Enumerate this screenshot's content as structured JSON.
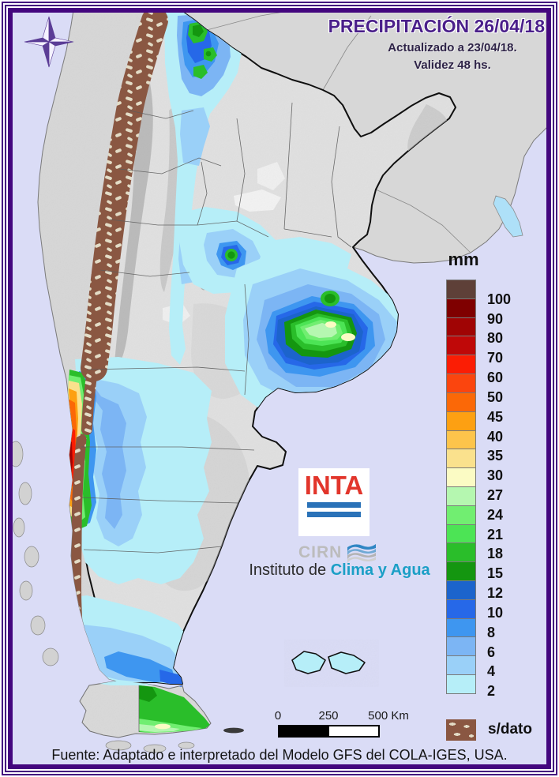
{
  "header": {
    "title": "PRECIPITACIÓN 26/04/18",
    "updated": "Actualizado a 23/04/18.",
    "validity": "Validez 48 hs."
  },
  "legend": {
    "unit": "mm",
    "values": [
      "100",
      "90",
      "80",
      "70",
      "60",
      "50",
      "45",
      "40",
      "35",
      "30",
      "27",
      "24",
      "21",
      "18",
      "15",
      "12",
      "10",
      "8",
      "6",
      "4",
      "2"
    ],
    "colors": [
      "#5e4038",
      "#7f0000",
      "#a00404",
      "#bf0808",
      "#fb1d04",
      "#fb450e",
      "#fb6807",
      "#fda012",
      "#fdc44b",
      "#fae18d",
      "#fbfbc4",
      "#b5f7b0",
      "#71ee71",
      "#4ce455",
      "#2abe2a",
      "#149610",
      "#1c64cc",
      "#2668e8",
      "#3e96f0",
      "#7cb5f4",
      "#9ad0f8",
      "#b6eef8"
    ],
    "nodata_label": "s/dato",
    "nodata_color": "#8a5742"
  },
  "scalebar": {
    "ticks": [
      "0",
      "250",
      "500 Km"
    ]
  },
  "branding": {
    "inta": "INTA",
    "cirn": "CIRN",
    "institute_prefix": "Instituto de ",
    "institute_highlight": "Clima y Agua"
  },
  "footer": {
    "source": "Fuente: Adaptado e interpretado del Modelo GFS del COLA-IGES, USA."
  },
  "colors": {
    "frame": "#43067e",
    "background": "#dadcf6",
    "title_text": "#4a1f8a",
    "land_neighbor": "#d7d7d7",
    "land_argentina": "#e0e0e0"
  }
}
